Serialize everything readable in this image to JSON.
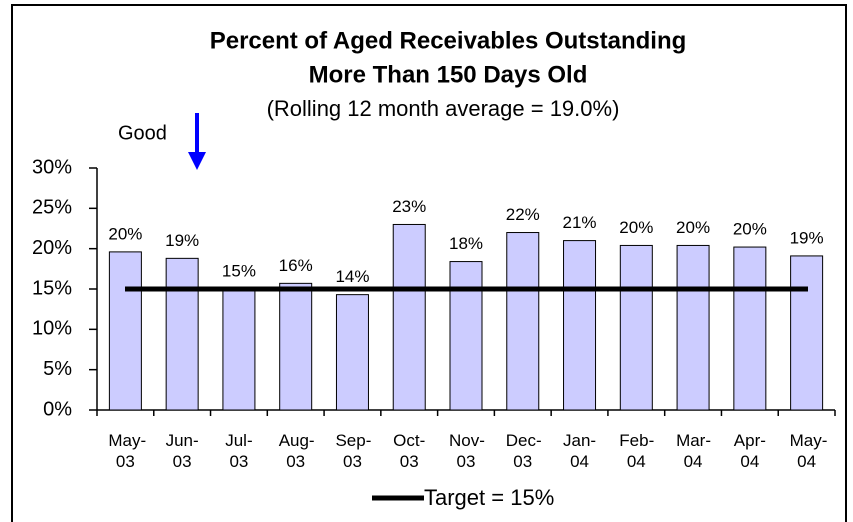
{
  "chart_data": {
    "type": "bar",
    "title": [
      "Percent of Aged Receivables Outstanding",
      "More Than 150 Days Old"
    ],
    "subtitle": "(Rolling 12 month average = 19.0%)",
    "annotation": "Good",
    "categories": [
      "May-03",
      "Jun-03",
      "Jul-03",
      "Aug-03",
      "Sep-03",
      "Oct-03",
      "Nov-03",
      "Dec-03",
      "Jan-04",
      "Feb-04",
      "Mar-04",
      "Apr-04",
      "May-04"
    ],
    "values": [
      19.6,
      18.8,
      15.0,
      15.7,
      14.3,
      23.0,
      18.4,
      22.0,
      21.0,
      20.4,
      20.4,
      20.2,
      19.1
    ],
    "value_labels": [
      "20%",
      "19%",
      "15%",
      "16%",
      "14%",
      "23%",
      "18%",
      "22%",
      "21%",
      "20%",
      "20%",
      "20%",
      "19%"
    ],
    "color": "#ccccff",
    "target": {
      "name": "Target = 15%",
      "value": 15,
      "color": "#000000"
    },
    "ylim": [
      0,
      30
    ],
    "yticks": [
      {
        "value": 0,
        "label": "0%"
      },
      {
        "value": 5,
        "label": "5%"
      },
      {
        "value": 10,
        "label": "10%"
      },
      {
        "value": 15,
        "label": "15%"
      },
      {
        "value": 20,
        "label": "20%"
      },
      {
        "value": 25,
        "label": "25%"
      },
      {
        "value": 30,
        "label": "30%"
      }
    ],
    "grid": false
  }
}
